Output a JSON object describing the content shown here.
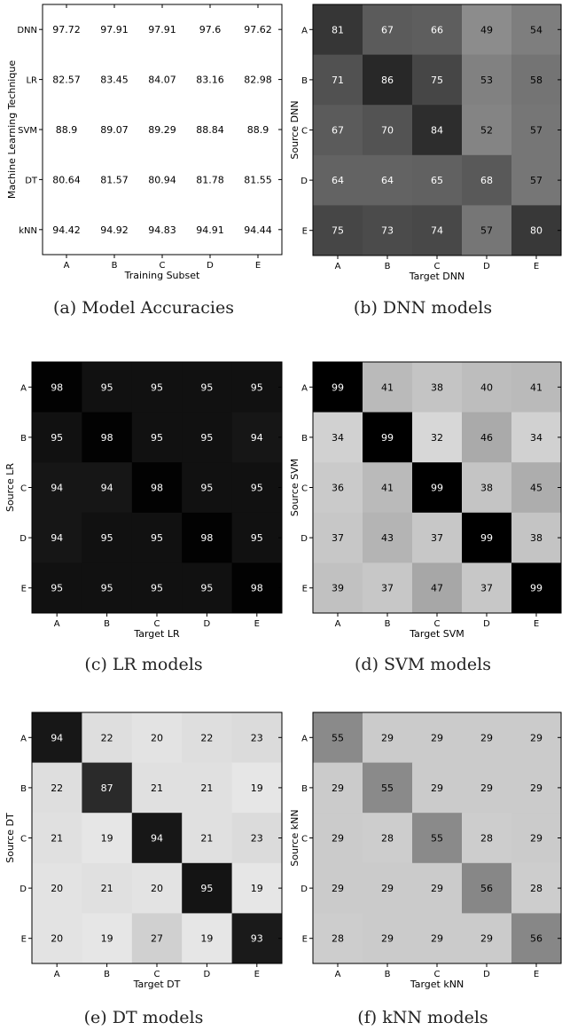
{
  "chart_data": [
    {
      "type": "table",
      "caption": "(a) Model Accuracies",
      "xlabel": "Training Subset",
      "ylabel": "Machine Learning Technique",
      "columns": [
        "A",
        "B",
        "C",
        "D",
        "E"
      ],
      "rows": [
        "DNN",
        "LR",
        "SVM",
        "DT",
        "kNN"
      ],
      "values": [
        [
          "97.72",
          "97.91",
          "97.91",
          "97.6",
          "97.62"
        ],
        [
          "82.57",
          "83.45",
          "84.07",
          "83.16",
          "82.98"
        ],
        [
          "88.9",
          "89.07",
          "89.29",
          "88.84",
          "88.9"
        ],
        [
          "80.64",
          "81.57",
          "80.94",
          "81.78",
          "81.55"
        ],
        [
          "94.42",
          "94.92",
          "94.83",
          "94.91",
          "94.44"
        ]
      ]
    },
    {
      "type": "heatmap",
      "caption": "(b) DNN models",
      "xlabel": "Target DNN",
      "ylabel": "Source DNN",
      "categories": [
        "A",
        "B",
        "C",
        "D",
        "E"
      ],
      "values": [
        [
          81,
          67,
          66,
          49,
          54
        ],
        [
          71,
          86,
          75,
          53,
          58
        ],
        [
          67,
          70,
          84,
          52,
          57
        ],
        [
          64,
          64,
          65,
          68,
          57
        ],
        [
          75,
          73,
          74,
          57,
          80
        ]
      ]
    },
    {
      "type": "heatmap",
      "caption": "(c) LR models",
      "xlabel": "Target LR",
      "ylabel": "Source LR",
      "categories": [
        "A",
        "B",
        "C",
        "D",
        "E"
      ],
      "values": [
        [
          98,
          95,
          95,
          95,
          95
        ],
        [
          95,
          98,
          95,
          95,
          94
        ],
        [
          94,
          94,
          98,
          95,
          95
        ],
        [
          94,
          95,
          95,
          98,
          95
        ],
        [
          95,
          95,
          95,
          95,
          98
        ]
      ]
    },
    {
      "type": "heatmap",
      "caption": "(d) SVM models",
      "xlabel": "Target SVM",
      "ylabel": "Source SVM",
      "categories": [
        "A",
        "B",
        "C",
        "D",
        "E"
      ],
      "values": [
        [
          99,
          41,
          38,
          40,
          41
        ],
        [
          34,
          99,
          32,
          46,
          34
        ],
        [
          36,
          41,
          99,
          38,
          45
        ],
        [
          37,
          43,
          37,
          99,
          38
        ],
        [
          39,
          37,
          47,
          37,
          99
        ]
      ]
    },
    {
      "type": "heatmap",
      "caption": "(e) DT models",
      "xlabel": "Target DT",
      "ylabel": "Source DT",
      "categories": [
        "A",
        "B",
        "C",
        "D",
        "E"
      ],
      "values": [
        [
          94,
          22,
          20,
          22,
          23
        ],
        [
          22,
          87,
          21,
          21,
          19
        ],
        [
          21,
          19,
          94,
          21,
          23
        ],
        [
          20,
          21,
          20,
          95,
          19
        ],
        [
          20,
          19,
          27,
          19,
          93
        ]
      ]
    },
    {
      "type": "heatmap",
      "caption": "(f) kNN models",
      "xlabel": "Target kNN",
      "ylabel": "Source kNN",
      "categories": [
        "A",
        "B",
        "C",
        "D",
        "E"
      ],
      "values": [
        [
          55,
          29,
          29,
          29,
          29
        ],
        [
          29,
          55,
          29,
          29,
          29
        ],
        [
          29,
          28,
          55,
          28,
          29
        ],
        [
          29,
          29,
          29,
          56,
          28
        ],
        [
          28,
          29,
          29,
          29,
          56
        ]
      ]
    }
  ]
}
